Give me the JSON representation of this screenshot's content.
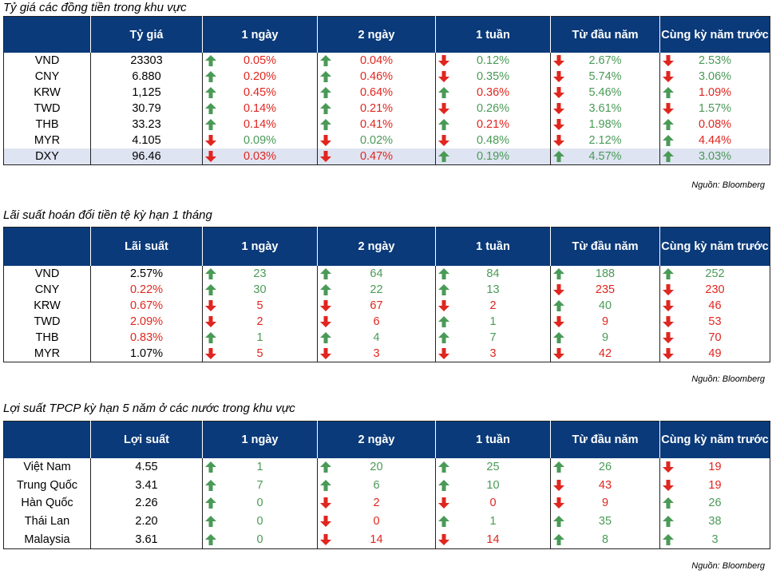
{
  "colors": {
    "header_bg": "#0a3a7a",
    "up": "#4a9a57",
    "down": "#e0261f",
    "highlight_row": "#dfe4f2"
  },
  "icons": {
    "up": "up-arrow-icon",
    "down": "down-arrow-icon"
  },
  "tables": [
    {
      "title": "Tỷ giá các đồng tiền trong khu vực",
      "source": "Nguồn: Bloomberg",
      "headers": [
        "",
        "Tỷ giá",
        "1 ngày",
        "2 ngày",
        "1 tuần",
        "Từ đầu năm",
        "Cùng kỳ năm trước"
      ],
      "rows": [
        {
          "label": "VND",
          "value": "23303",
          "value_color": "black",
          "cells": [
            {
              "dir": "up",
              "text": "0.05%",
              "color": "down"
            },
            {
              "dir": "up",
              "text": "0.04%",
              "color": "down"
            },
            {
              "dir": "down",
              "text": "0.12%",
              "color": "up"
            },
            {
              "dir": "down",
              "text": "2.67%",
              "color": "up"
            },
            {
              "dir": "down",
              "text": "2.53%",
              "color": "up"
            }
          ]
        },
        {
          "label": "CNY",
          "value": "6.880",
          "value_color": "black",
          "cells": [
            {
              "dir": "up",
              "text": "0.20%",
              "color": "down"
            },
            {
              "dir": "up",
              "text": "0.46%",
              "color": "down"
            },
            {
              "dir": "down",
              "text": "0.35%",
              "color": "up"
            },
            {
              "dir": "down",
              "text": "5.74%",
              "color": "up"
            },
            {
              "dir": "down",
              "text": "3.06%",
              "color": "up"
            }
          ]
        },
        {
          "label": "KRW",
          "value": "1,125",
          "value_color": "black",
          "cells": [
            {
              "dir": "up",
              "text": "0.45%",
              "color": "down"
            },
            {
              "dir": "up",
              "text": "0.64%",
              "color": "down"
            },
            {
              "dir": "up",
              "text": "0.36%",
              "color": "down"
            },
            {
              "dir": "down",
              "text": "5.46%",
              "color": "up"
            },
            {
              "dir": "up",
              "text": "1.09%",
              "color": "down"
            }
          ]
        },
        {
          "label": "TWD",
          "value": "30.79",
          "value_color": "black",
          "cells": [
            {
              "dir": "up",
              "text": "0.14%",
              "color": "down"
            },
            {
              "dir": "up",
              "text": "0.21%",
              "color": "down"
            },
            {
              "dir": "down",
              "text": "0.26%",
              "color": "up"
            },
            {
              "dir": "down",
              "text": "3.61%",
              "color": "up"
            },
            {
              "dir": "down",
              "text": "1.57%",
              "color": "up"
            }
          ]
        },
        {
          "label": "THB",
          "value": "33.23",
          "value_color": "black",
          "cells": [
            {
              "dir": "up",
              "text": "0.14%",
              "color": "down"
            },
            {
              "dir": "up",
              "text": "0.41%",
              "color": "down"
            },
            {
              "dir": "up",
              "text": "0.21%",
              "color": "down"
            },
            {
              "dir": "down",
              "text": "1.98%",
              "color": "up"
            },
            {
              "dir": "up",
              "text": "0.08%",
              "color": "down"
            }
          ]
        },
        {
          "label": "MYR",
          "value": "4.105",
          "value_color": "black",
          "cells": [
            {
              "dir": "down",
              "text": "0.09%",
              "color": "up"
            },
            {
              "dir": "down",
              "text": "0.02%",
              "color": "up"
            },
            {
              "dir": "down",
              "text": "0.48%",
              "color": "up"
            },
            {
              "dir": "down",
              "text": "2.12%",
              "color": "up"
            },
            {
              "dir": "up",
              "text": "4.44%",
              "color": "down"
            }
          ]
        },
        {
          "label": "DXY",
          "value": "96.46",
          "value_color": "black",
          "highlight": true,
          "cells": [
            {
              "dir": "down",
              "text": "0.03%",
              "color": "down"
            },
            {
              "dir": "down",
              "text": "0.47%",
              "color": "down"
            },
            {
              "dir": "up",
              "text": "0.19%",
              "color": "up"
            },
            {
              "dir": "up",
              "text": "4.57%",
              "color": "up"
            },
            {
              "dir": "up",
              "text": "3.03%",
              "color": "up"
            }
          ]
        }
      ]
    },
    {
      "title": "Lãi suất hoán đổi tiền tệ kỳ hạn 1 tháng",
      "source": "Nguồn: Bloomberg",
      "headers": [
        "",
        "Lãi suất",
        "1 ngày",
        "2 ngày",
        "1 tuần",
        "Từ đầu năm",
        "Cùng kỳ năm trước"
      ],
      "rows": [
        {
          "label": "VND",
          "value": "2.57%",
          "value_color": "black",
          "cells": [
            {
              "dir": "up",
              "text": "23",
              "color": "up"
            },
            {
              "dir": "up",
              "text": "64",
              "color": "up"
            },
            {
              "dir": "up",
              "text": "84",
              "color": "up"
            },
            {
              "dir": "up",
              "text": "188",
              "color": "up"
            },
            {
              "dir": "up",
              "text": "252",
              "color": "up"
            }
          ]
        },
        {
          "label": "CNY",
          "value": "0.22%",
          "value_color": "red",
          "cells": [
            {
              "dir": "up",
              "text": "30",
              "color": "up"
            },
            {
              "dir": "up",
              "text": "22",
              "color": "up"
            },
            {
              "dir": "up",
              "text": "13",
              "color": "up"
            },
            {
              "dir": "down",
              "text": "235",
              "color": "down"
            },
            {
              "dir": "down",
              "text": "230",
              "color": "down"
            }
          ]
        },
        {
          "label": "KRW",
          "value": "0.67%",
          "value_color": "red",
          "cells": [
            {
              "dir": "down",
              "text": "5",
              "color": "down"
            },
            {
              "dir": "down",
              "text": "67",
              "color": "down"
            },
            {
              "dir": "down",
              "text": "2",
              "color": "down"
            },
            {
              "dir": "up",
              "text": "40",
              "color": "up"
            },
            {
              "dir": "down",
              "text": "46",
              "color": "down"
            }
          ]
        },
        {
          "label": "TWD",
          "value": "2.09%",
          "value_color": "red",
          "cells": [
            {
              "dir": "down",
              "text": "2",
              "color": "down"
            },
            {
              "dir": "down",
              "text": "6",
              "color": "down"
            },
            {
              "dir": "up",
              "text": "1",
              "color": "up"
            },
            {
              "dir": "down",
              "text": "9",
              "color": "down"
            },
            {
              "dir": "down",
              "text": "53",
              "color": "down"
            }
          ]
        },
        {
          "label": "THB",
          "value": "0.83%",
          "value_color": "red",
          "cells": [
            {
              "dir": "up",
              "text": "1",
              "color": "up"
            },
            {
              "dir": "up",
              "text": "4",
              "color": "up"
            },
            {
              "dir": "up",
              "text": "7",
              "color": "up"
            },
            {
              "dir": "up",
              "text": "9",
              "color": "up"
            },
            {
              "dir": "down",
              "text": "70",
              "color": "down"
            }
          ]
        },
        {
          "label": "MYR",
          "value": "1.07%",
          "value_color": "black",
          "cells": [
            {
              "dir": "down",
              "text": "5",
              "color": "down"
            },
            {
              "dir": "down",
              "text": "3",
              "color": "down"
            },
            {
              "dir": "down",
              "text": "3",
              "color": "down"
            },
            {
              "dir": "down",
              "text": "42",
              "color": "down"
            },
            {
              "dir": "down",
              "text": "49",
              "color": "down"
            }
          ]
        }
      ]
    },
    {
      "title": "Lợi suất TPCP kỳ hạn 5 năm ở các nước trong khu vực",
      "source": "Nguồn: Bloomberg",
      "headers": [
        "",
        "Lợi suất",
        "1 ngày",
        "2 ngày",
        "1 tuần",
        "Từ đầu năm",
        "Cùng kỳ năm trước"
      ],
      "rows": [
        {
          "label": "Việt Nam",
          "value": "4.55",
          "value_color": "black",
          "cells": [
            {
              "dir": "up",
              "text": "1",
              "color": "up"
            },
            {
              "dir": "up",
              "text": "20",
              "color": "up"
            },
            {
              "dir": "up",
              "text": "25",
              "color": "up"
            },
            {
              "dir": "up",
              "text": "26",
              "color": "up"
            },
            {
              "dir": "down",
              "text": "19",
              "color": "down"
            }
          ]
        },
        {
          "label": "Trung Quốc",
          "value": "3.41",
          "value_color": "black",
          "cells": [
            {
              "dir": "up",
              "text": "7",
              "color": "up"
            },
            {
              "dir": "up",
              "text": "6",
              "color": "up"
            },
            {
              "dir": "up",
              "text": "10",
              "color": "up"
            },
            {
              "dir": "down",
              "text": "43",
              "color": "down"
            },
            {
              "dir": "down",
              "text": "19",
              "color": "down"
            }
          ]
        },
        {
          "label": "Hàn Quốc",
          "value": "2.26",
          "value_color": "black",
          "cells": [
            {
              "dir": "up",
              "text": "0",
              "color": "up"
            },
            {
              "dir": "down",
              "text": "2",
              "color": "down"
            },
            {
              "dir": "down",
              "text": "0",
              "color": "down"
            },
            {
              "dir": "down",
              "text": "9",
              "color": "down"
            },
            {
              "dir": "up",
              "text": "26",
              "color": "up"
            }
          ]
        },
        {
          "label": "Thái Lan",
          "value": "2.20",
          "value_color": "black",
          "cells": [
            {
              "dir": "up",
              "text": "0",
              "color": "up"
            },
            {
              "dir": "down",
              "text": "0",
              "color": "down"
            },
            {
              "dir": "up",
              "text": "1",
              "color": "up"
            },
            {
              "dir": "up",
              "text": "35",
              "color": "up"
            },
            {
              "dir": "up",
              "text": "38",
              "color": "up"
            }
          ]
        },
        {
          "label": "Malaysia",
          "value": "3.61",
          "value_color": "black",
          "cells": [
            {
              "dir": "up",
              "text": "0",
              "color": "up"
            },
            {
              "dir": "down",
              "text": "14",
              "color": "down"
            },
            {
              "dir": "down",
              "text": "14",
              "color": "down"
            },
            {
              "dir": "up",
              "text": "8",
              "color": "up"
            },
            {
              "dir": "up",
              "text": "3",
              "color": "up"
            }
          ]
        }
      ]
    }
  ]
}
